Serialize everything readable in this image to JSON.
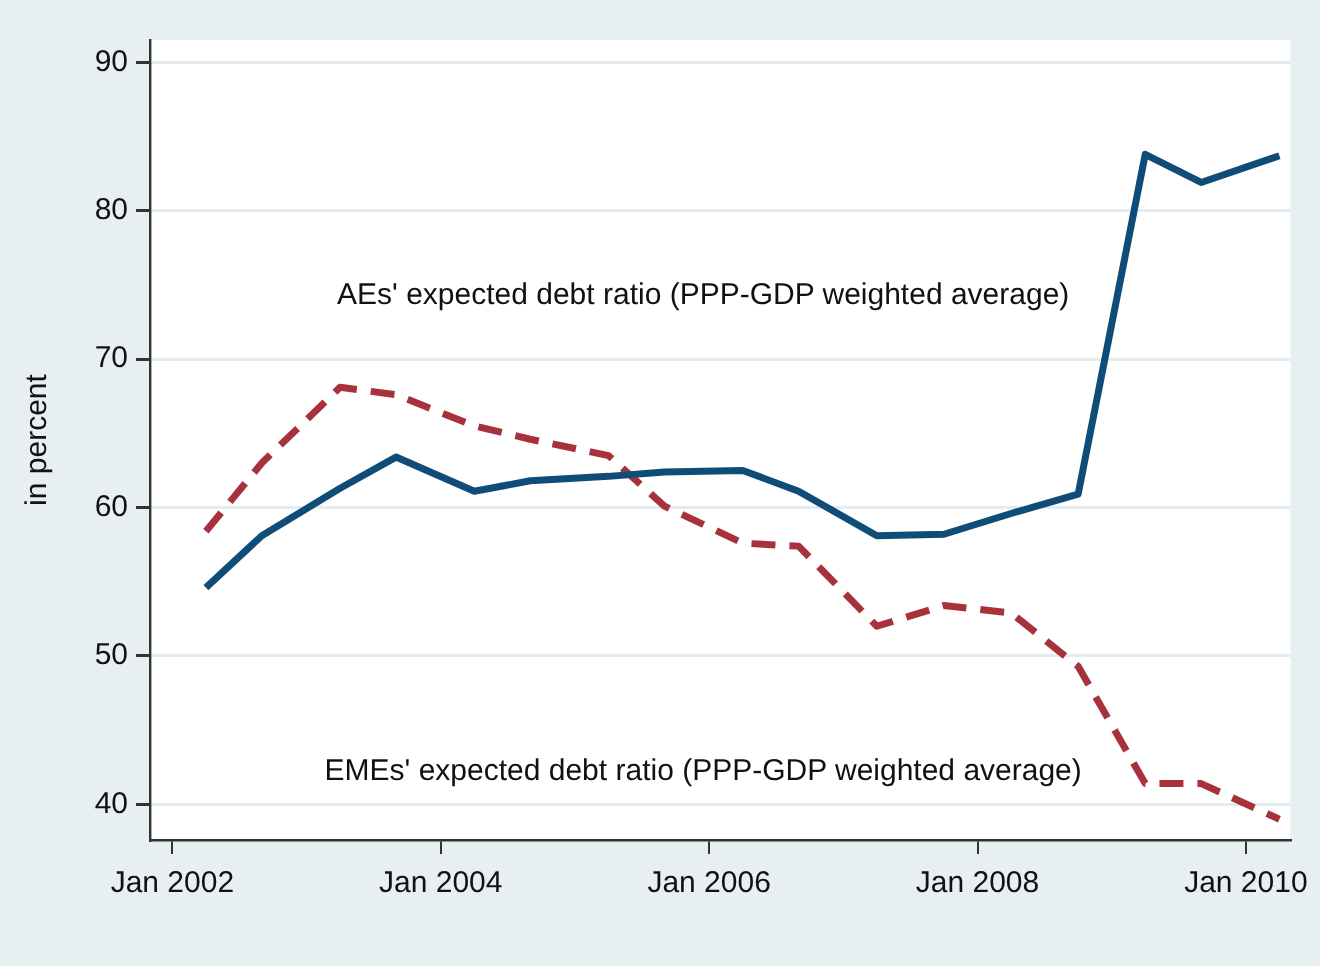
{
  "chart_data": {
    "type": "line",
    "ylabel": "in percent",
    "x": [
      "2002-04",
      "2002-09",
      "2003-04",
      "2003-09",
      "2004-04",
      "2004-09",
      "2005-04",
      "2005-09",
      "2006-04",
      "2006-09",
      "2007-04",
      "2007-10",
      "2008-04",
      "2008-10",
      "2009-04",
      "2009-09",
      "2010-04"
    ],
    "series": [
      {
        "name": "AEs' expected debt ratio (PPP-GDP weighted average)",
        "color": "#0f4c78",
        "line_style": "solid",
        "values": [
          54.6,
          58.1,
          61.3,
          63.4,
          61.1,
          61.8,
          62.1,
          62.4,
          62.5,
          61.1,
          58.1,
          58.2,
          59.6,
          60.9,
          83.8,
          81.9,
          83.7
        ]
      },
      {
        "name": "EMEs' expected debt ratio (PPP-GDP weighted average)",
        "color": "#a8323c",
        "line_style": "dashed",
        "values": [
          58.4,
          63.0,
          68.1,
          67.6,
          65.5,
          64.6,
          63.5,
          60.1,
          57.6,
          57.4,
          52.0,
          53.4,
          52.9,
          49.3,
          41.4,
          41.4,
          39.0
        ]
      }
    ],
    "xlim": [
      "2001-11",
      "2010-05"
    ],
    "xticks": [
      {
        "value": "2002-01",
        "label": "Jan 2002"
      },
      {
        "value": "2004-01",
        "label": "Jan 2004"
      },
      {
        "value": "2006-01",
        "label": "Jan 2006"
      },
      {
        "value": "2008-01",
        "label": "Jan 2008"
      },
      {
        "value": "2010-01",
        "label": "Jan 2010"
      }
    ],
    "ylim": [
      37.6,
      91.5
    ],
    "yticks": [
      40,
      50,
      60,
      70,
      80,
      90
    ],
    "grid": "y",
    "legend": false,
    "marker": "none"
  }
}
